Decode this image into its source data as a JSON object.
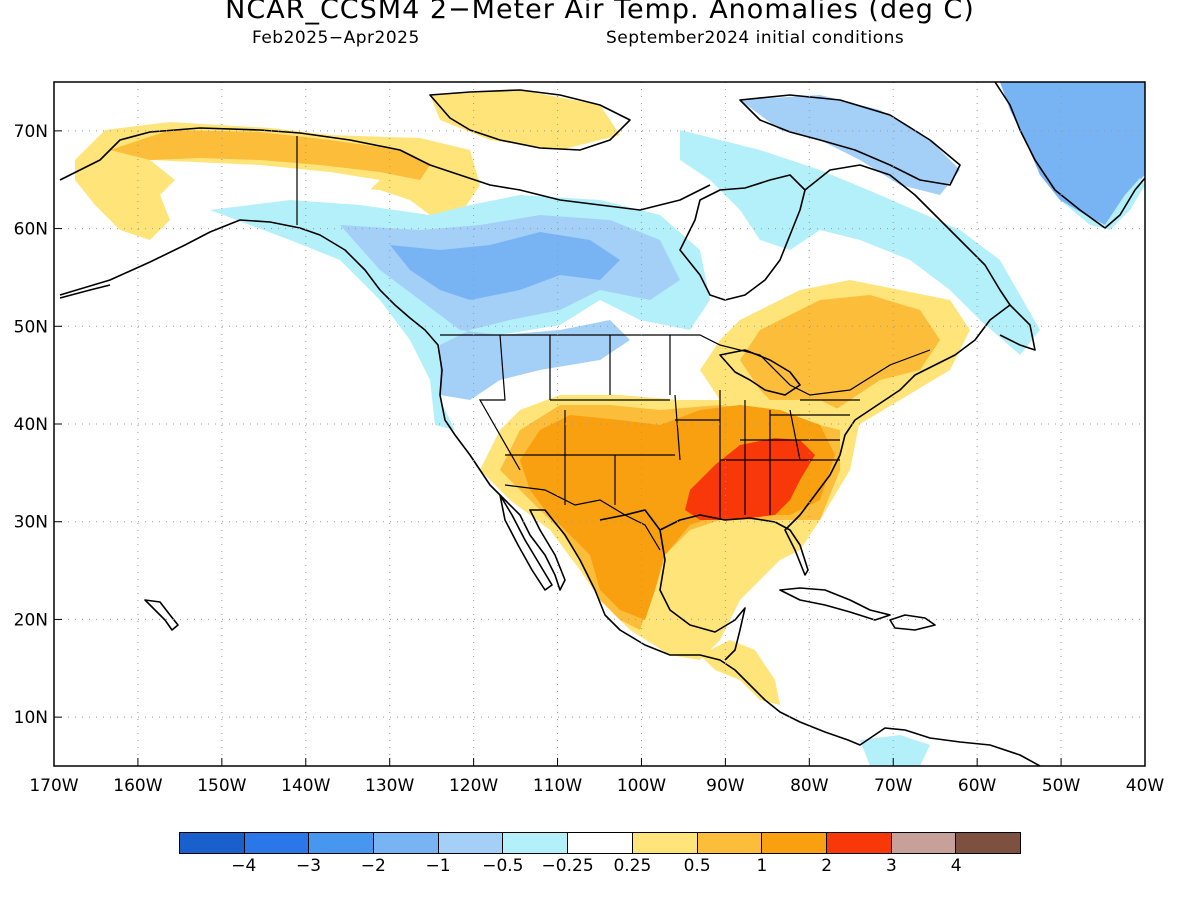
{
  "header": {
    "title": "NCAR_CCSM4 2−Meter Air Temp. Anomalies (deg C)",
    "period": "Feb2025−Apr2025",
    "init": "September2024 initial conditions"
  },
  "map_axes": {
    "lon_labels": [
      "170W",
      "160W",
      "150W",
      "140W",
      "130W",
      "120W",
      "110W",
      "100W",
      "90W",
      "80W",
      "70W",
      "60W",
      "50W",
      "40W"
    ],
    "lon_values": [
      -170,
      -160,
      -150,
      -140,
      -130,
      -120,
      -110,
      -100,
      -90,
      -80,
      -70,
      -60,
      -50,
      -40
    ],
    "lat_labels": [
      "70N",
      "60N",
      "50N",
      "40N",
      "30N",
      "20N",
      "10N"
    ],
    "lat_values": [
      70,
      60,
      50,
      40,
      30,
      20,
      10
    ],
    "lon_range": [
      -170,
      -40
    ],
    "lat_range": [
      5,
      75
    ],
    "grid": "dotted"
  },
  "colorbar": {
    "colors": [
      "#1a60cc",
      "#2b76e8",
      "#4796f0",
      "#78b4f4",
      "#a4d0f8",
      "#b4f0fa",
      "#ffffff",
      "#ffe47a",
      "#fcbd3a",
      "#f8a010",
      "#f83808",
      "#c8a09a",
      "#7d5040"
    ],
    "labels": [
      "−4",
      "−3",
      "−2",
      "−1",
      "−0.5",
      "−0.25",
      "0.25",
      "0.5",
      "1",
      "2",
      "3",
      "4"
    ]
  }
}
